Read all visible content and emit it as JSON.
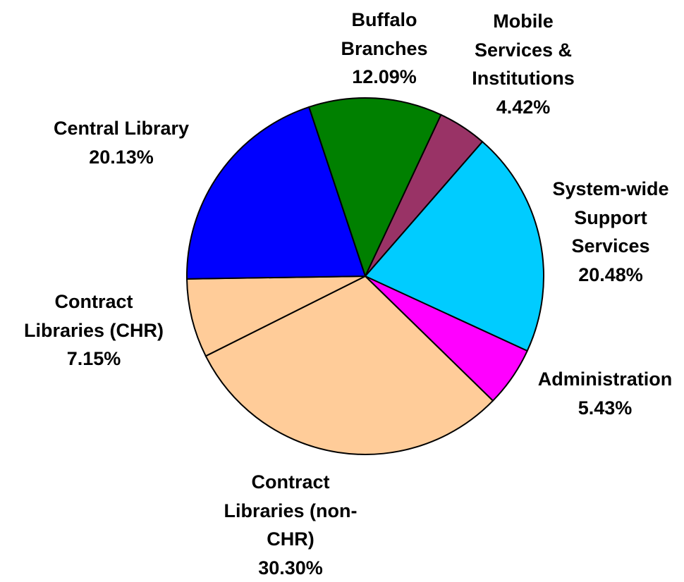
{
  "chart_data": {
    "type": "pie",
    "categories": [
      "Buffalo\nBranches",
      "Mobile\nServices &\nInstitutions",
      "System-wide\nSupport\nServices",
      "Administration",
      "Contract\nLibraries (non-\nCHR)",
      "Contract\nLibraries (CHR)",
      "Central Library"
    ],
    "values": [
      12.09,
      4.42,
      20.48,
      5.43,
      30.3,
      7.15,
      20.13
    ],
    "value_labels": [
      "12.09%",
      "4.42%",
      "20.48%",
      "5.43%",
      "30.30%",
      "7.15%",
      "20.13%"
    ],
    "colors": [
      "#008000",
      "#993366",
      "#00ccff",
      "#ff00ff",
      "#ffcc99",
      "#ffcc99",
      "#0000ff"
    ]
  }
}
